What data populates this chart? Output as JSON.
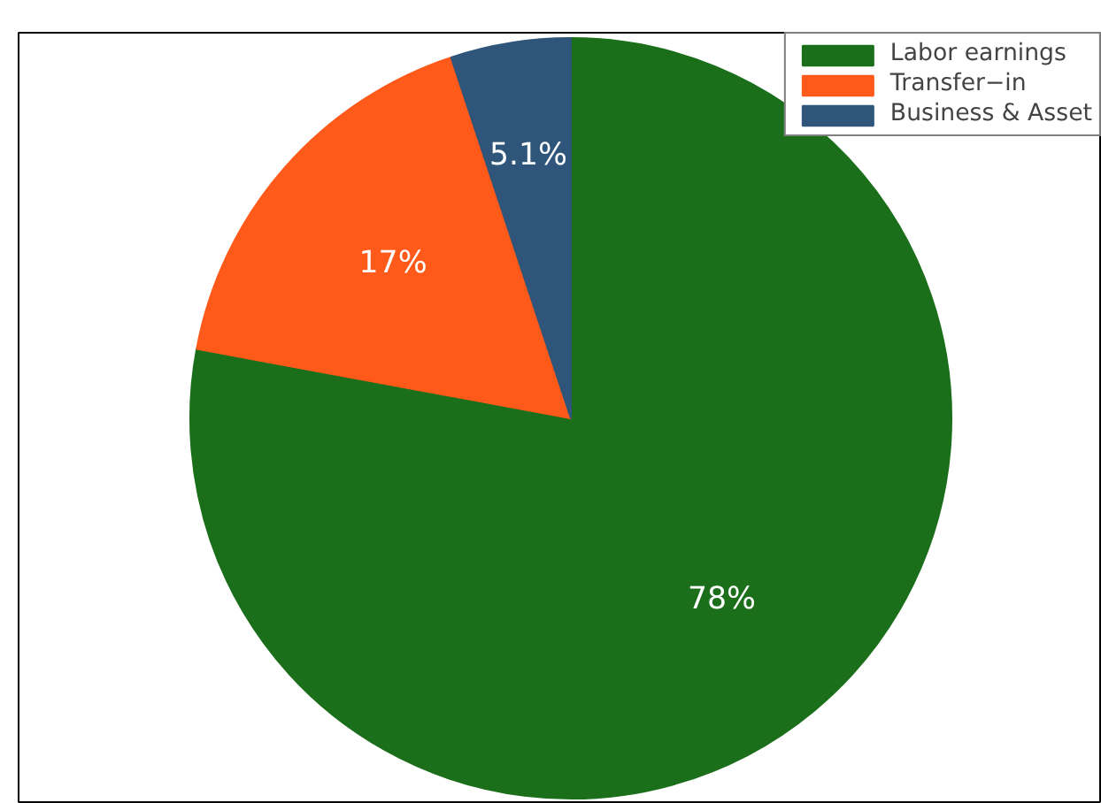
{
  "chart_data": {
    "type": "pie",
    "categories": [
      "Labor earnings",
      "Transfer−in",
      "Business & Asset"
    ],
    "values": [
      78,
      17,
      5.1
    ],
    "colors": [
      "#1b6f1b",
      "#ff5a1a",
      "#2f557a"
    ],
    "value_labels": [
      "78%",
      "17%",
      "5.1%"
    ],
    "legend": "top right"
  }
}
